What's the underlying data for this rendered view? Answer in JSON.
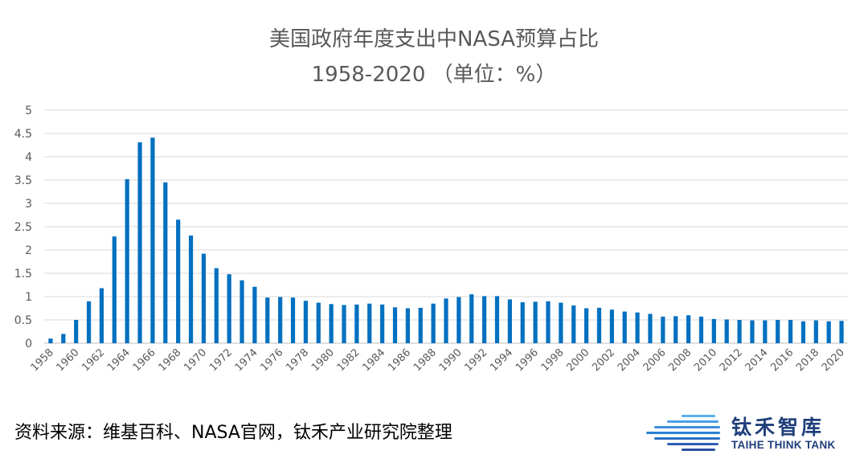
{
  "chart_data": {
    "type": "bar",
    "title": "美国政府年度支出中NASA预算占比",
    "subtitle": "1958-2020 （单位：%）",
    "xlabel": "",
    "ylabel": "",
    "ylim": [
      0,
      5
    ],
    "yticks": [
      "0",
      "0.5",
      "1",
      "1.5",
      "2",
      "2.5",
      "3",
      "3.5",
      "4",
      "4.5",
      "5"
    ],
    "grid": true,
    "bar_color": "#0070c0",
    "categories": [
      "1958",
      "1959",
      "1960",
      "1961",
      "1962",
      "1963",
      "1964",
      "1965",
      "1966",
      "1967",
      "1968",
      "1969",
      "1970",
      "1971",
      "1972",
      "1973",
      "1974",
      "1975",
      "1976",
      "1977",
      "1978",
      "1979",
      "1980",
      "1981",
      "1982",
      "1983",
      "1984",
      "1985",
      "1986",
      "1987",
      "1988",
      "1989",
      "1990",
      "1991",
      "1992",
      "1993",
      "1994",
      "1995",
      "1996",
      "1997",
      "1998",
      "1999",
      "2000",
      "2001",
      "2002",
      "2003",
      "2004",
      "2005",
      "2006",
      "2007",
      "2008",
      "2009",
      "2010",
      "2011",
      "2012",
      "2013",
      "2014",
      "2015",
      "2016",
      "2017",
      "2018",
      "2019",
      "2020"
    ],
    "xtick_labels": [
      "1958",
      "1960",
      "1962",
      "1964",
      "1966",
      "1968",
      "1970",
      "1972",
      "1974",
      "1976",
      "1978",
      "1980",
      "1982",
      "1984",
      "1986",
      "1988",
      "1990",
      "1992",
      "1994",
      "1996",
      "1998",
      "2000",
      "2002",
      "2004",
      "2006",
      "2008",
      "2010",
      "2012",
      "2014",
      "2016",
      "2018",
      "2020"
    ],
    "values": [
      0.1,
      0.2,
      0.5,
      0.9,
      1.18,
      2.29,
      3.52,
      4.31,
      4.41,
      3.45,
      2.65,
      2.31,
      1.92,
      1.61,
      1.48,
      1.35,
      1.21,
      0.98,
      0.99,
      0.98,
      0.91,
      0.87,
      0.84,
      0.82,
      0.83,
      0.85,
      0.83,
      0.77,
      0.75,
      0.76,
      0.85,
      0.96,
      0.99,
      1.05,
      1.01,
      1.01,
      0.94,
      0.88,
      0.89,
      0.9,
      0.87,
      0.81,
      0.75,
      0.76,
      0.72,
      0.68,
      0.66,
      0.63,
      0.57,
      0.58,
      0.6,
      0.57,
      0.52,
      0.51,
      0.5,
      0.49,
      0.49,
      0.5,
      0.5,
      0.47,
      0.49,
      0.47,
      0.48
    ]
  },
  "footer": {
    "source": "资料来源：维基百科、NASA官网，钛禾产业研究院整理"
  },
  "logo": {
    "name_cn": "钛禾智库",
    "name_en": "TAIHE THINK TANK"
  }
}
